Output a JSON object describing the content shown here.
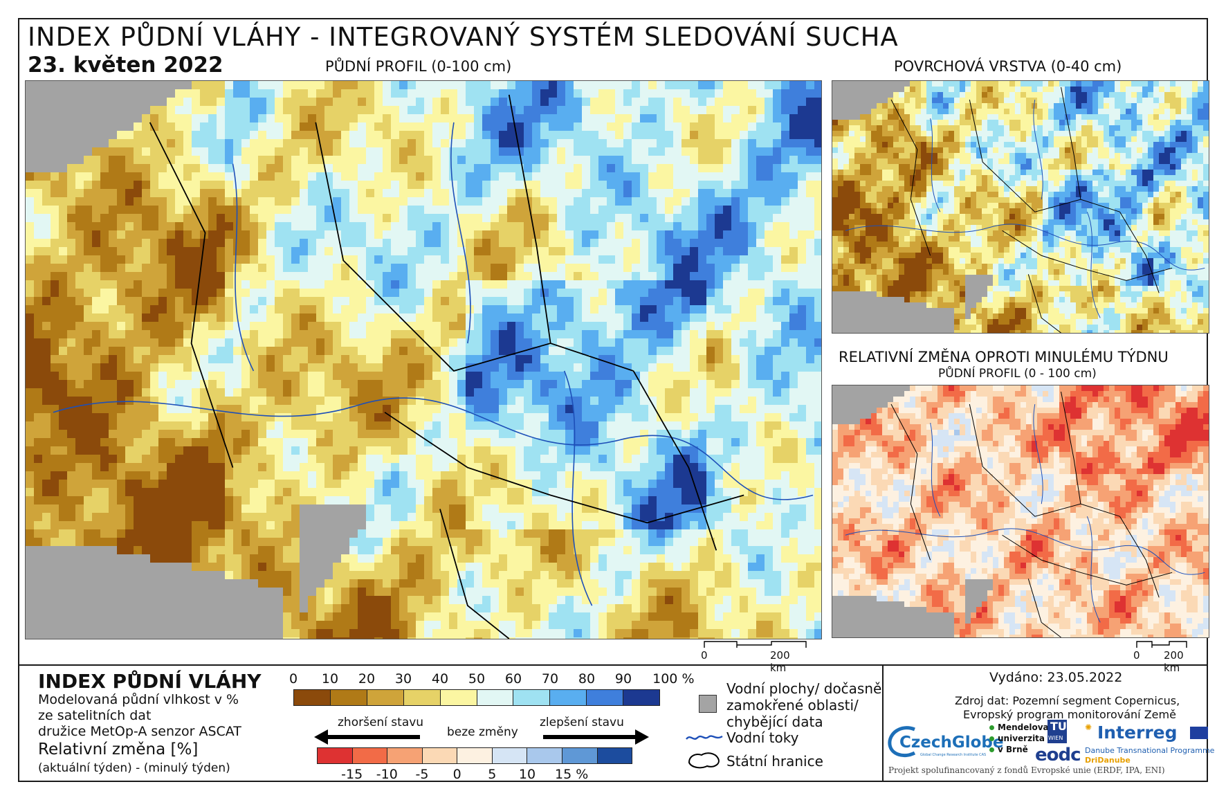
{
  "header": {
    "title": "INDEX PŮDNÍ VLÁHY - INTEGROVANÝ SYSTÉM SLEDOVÁNÍ SUCHA",
    "date": "23. květen 2022"
  },
  "maps": {
    "main": {
      "label": "PŮDNÍ PROFIL (0-100 cm)",
      "scale_zero": "0",
      "scale_end": "200 km"
    },
    "surface": {
      "label": "POVRCHOVÁ VRSTVA (0-40 cm)"
    },
    "change": {
      "label": "RELATIVNÍ ZMĚNA OPROTI MINULÉMU TÝDNU",
      "sublabel": "PŮDNÍ PROFIL (0 - 100 cm)",
      "scale_zero": "0",
      "scale_end": "200 km"
    }
  },
  "legend": {
    "title": "INDEX PŮDNÍ VLÁHY",
    "desc1": "Modelovaná půdní vlhkost v %",
    "desc2": "ze satelitních dat",
    "desc3": "družice MetOp-A senzor ASCAT",
    "change_title": "Relativní změna [%]",
    "change_desc": "(aktuální týden) - (minulý týden)",
    "index_ticks": [
      "0",
      "10",
      "20",
      "30",
      "40",
      "50",
      "60",
      "70",
      "80",
      "90",
      "100 %"
    ],
    "index_colors": [
      "#8b4a0b",
      "#b07a17",
      "#cfa43a",
      "#e6d267",
      "#fbf6a2",
      "#e2f7f4",
      "#9fe2f2",
      "#59aef0",
      "#3f7fdc",
      "#1c3991"
    ],
    "worse_label": "zhoršení stavu",
    "nochange_label": "beze změny",
    "better_label": "zlepšení stavu",
    "change_ticks": [
      "-15",
      "-10",
      "-5",
      "0",
      "5",
      "10",
      "15 %"
    ],
    "change_colors": [
      "#de3232",
      "#f26b47",
      "#f6a274",
      "#fbd9b5",
      "#fdf1e1",
      "#d6e5f5",
      "#a9c8ec",
      "#5f98d6",
      "#1c4c9e"
    ],
    "water_label": "Vodní plochy/ dočasně zamokřené oblasti/ chybějící data",
    "water_line1": "Vodní plochy/ dočasně",
    "water_line2": "zamokřené oblasti/",
    "water_line3": "chybějící data",
    "rivers_label": "Vodní toky",
    "borders_label": "Státní hranice"
  },
  "info": {
    "issued": "Vydáno: 23.05.2022",
    "source1": "Zdroj dat: Pozemní segment Copernicus,",
    "source2": "Evropský program monitorování Země",
    "footer": "Projekt spolufinancovaný z fondů Evropské unie (ERDF, IPA, ENI)"
  },
  "logos": {
    "czechglobe": "CzechGlobe",
    "czechglobe_sub": "Global Change Research Institute CAS",
    "mendelu1": "Mendelova",
    "mendelu2": "univerzita",
    "mendelu3": "v Brně",
    "tuwien1": "TU",
    "tuwien2": "WIEN",
    "eodc": "eodc",
    "interreg": "Interreg",
    "interreg_sub": "Danube Transnational Programme",
    "dridanube": "DriDanube"
  }
}
